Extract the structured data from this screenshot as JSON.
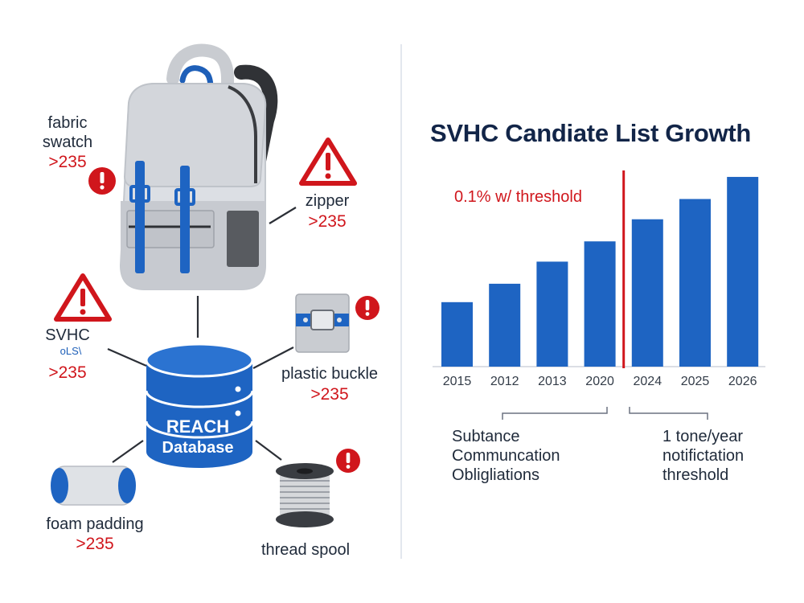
{
  "diagram": {
    "center": {
      "line1": "REACH",
      "line2": "Database"
    },
    "items": [
      {
        "id": "fabric-swatch",
        "label_line1": "fabric",
        "label_line2": "swatch",
        "value": ">235"
      },
      {
        "id": "zipper",
        "label": "zipper",
        "value": ">235"
      },
      {
        "id": "svhc",
        "label": "SVHC",
        "sublabel": "οLS\\",
        "value": ">235"
      },
      {
        "id": "plastic-buckle",
        "label": "plastic buckle",
        "value": ">235"
      },
      {
        "id": "foam-padding",
        "label": "foam padding",
        "value": ">235"
      },
      {
        "id": "thread-spool",
        "label": "thread spool"
      }
    ]
  },
  "chart_data": {
    "type": "bar",
    "title": "SVHC Candiate List Growth",
    "categories": [
      "2015",
      "2012",
      "2013",
      "2020",
      "2024",
      "2025",
      "2026"
    ],
    "values": [
      35,
      45,
      57,
      68,
      80,
      91,
      103
    ],
    "ylim": [
      0,
      110
    ],
    "threshold_label": "0.1% w/ threshold",
    "threshold_after_index": 3,
    "colors": {
      "bar": "#1e64c2",
      "threshold": "#d0161c"
    },
    "annotations": {
      "left": {
        "lines": [
          "Subtance",
          "Communcation",
          "Obligliations"
        ]
      },
      "right": {
        "lines": [
          "1 tone/year",
          "notifictation",
          "threshold"
        ]
      }
    }
  }
}
